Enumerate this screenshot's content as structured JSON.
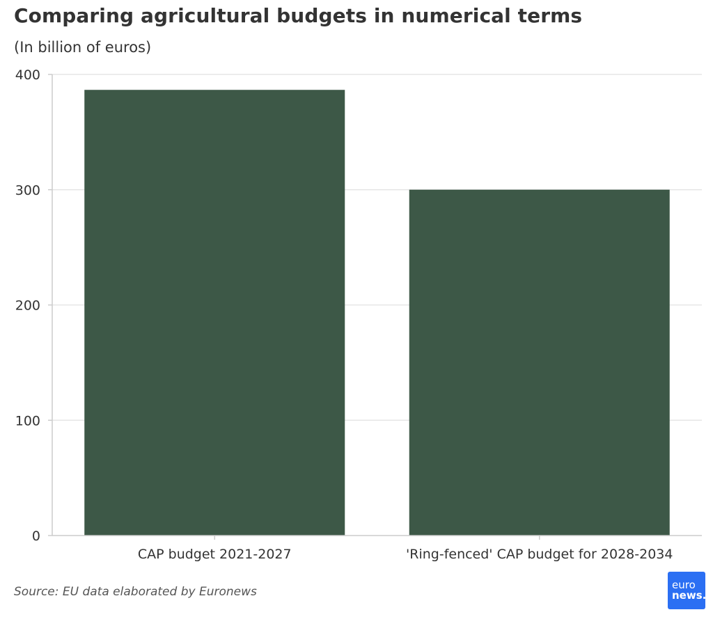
{
  "header": {
    "title": "Comparing agricultural budgets in numerical terms",
    "subtitle": "(In billion of euros)"
  },
  "footer": {
    "source": "Source: EU data elaborated by Euronews",
    "logo_line1": "euro",
    "logo_line2": "news."
  },
  "colors": {
    "bar": "#3d5847",
    "grid": "#e6e6e6",
    "axis": "#cccccc",
    "logo_bg": "#2b6ff3"
  },
  "chart_data": {
    "type": "bar",
    "categories": [
      "CAP budget 2021-2027",
      "'Ring-fenced' CAP budget for 2028-2034"
    ],
    "values": [
      386.6,
      300
    ],
    "title": "Comparing agricultural budgets in numerical terms",
    "subtitle": "(In billion of euros)",
    "xlabel": "",
    "ylabel": "",
    "ylim": [
      0,
      400
    ],
    "yticks": [
      0,
      100,
      200,
      300,
      400
    ],
    "grid": true,
    "legend": "none"
  }
}
